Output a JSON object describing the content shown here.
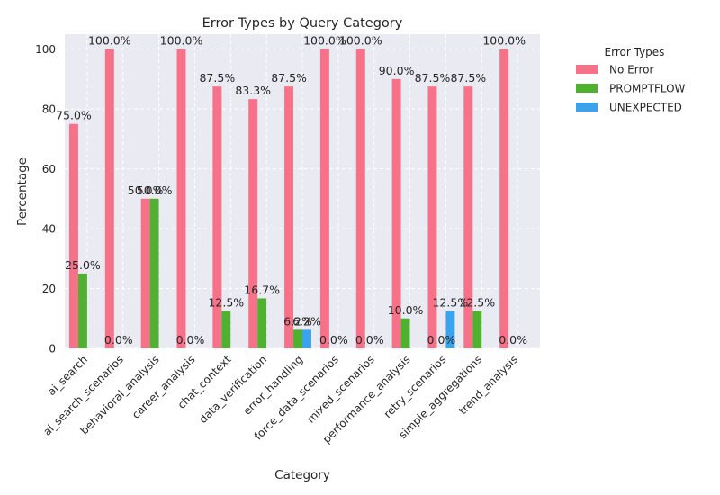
{
  "chart_data": {
    "type": "bar",
    "title": "Error Types by Query Category",
    "xlabel": "Category",
    "ylabel": "Percentage",
    "ylim": [
      0,
      105
    ],
    "yticks": [
      0,
      20,
      40,
      60,
      80,
      100
    ],
    "grid": true,
    "legend_title": "Error Types",
    "legend_position": "outside-right",
    "categories": [
      "ai_search",
      "ai_search_scenarios",
      "behavioral_analysis",
      "career_analysis",
      "chat_context",
      "data_verification",
      "error_handling",
      "force_data_scenarios",
      "mixed_scenarios",
      "performance_analysis",
      "retry_scenarios",
      "simple_aggregations",
      "trend_analysis"
    ],
    "series": [
      {
        "name": "No Error",
        "color": "#f77189",
        "values": [
          75.0,
          100.0,
          50.0,
          100.0,
          87.5,
          83.3,
          87.5,
          100.0,
          100.0,
          90.0,
          87.5,
          87.5,
          100.0
        ],
        "labels": [
          "75.0%",
          "100.0%",
          "50.0%",
          "100.0%",
          "87.5%",
          "83.3%",
          "87.5%",
          "100.0%",
          "100.0%",
          "90.0%",
          "87.5%",
          "87.5%",
          "100.0%"
        ]
      },
      {
        "name": "PROMPTFLOW",
        "color": "#50b131",
        "values": [
          25.0,
          0.0,
          50.0,
          0.0,
          12.5,
          16.7,
          6.2,
          0.0,
          0.0,
          10.0,
          0.0,
          12.5,
          0.0
        ],
        "labels": [
          "25.0%",
          "0.0%",
          "50.0%",
          "0.0%",
          "12.5%",
          "16.7%",
          "6.2%",
          "0.0%",
          "0.0%",
          "10.0%",
          "0.0%",
          "12.5%",
          "0.0%"
        ]
      },
      {
        "name": "UNEXPECTED",
        "color": "#3ba3ec",
        "values": [
          null,
          null,
          null,
          null,
          null,
          null,
          6.2,
          null,
          null,
          null,
          12.5,
          null,
          null
        ],
        "labels": [
          null,
          null,
          null,
          null,
          null,
          null,
          "6.2%",
          null,
          null,
          null,
          "12.5%",
          null,
          null
        ]
      }
    ]
  }
}
